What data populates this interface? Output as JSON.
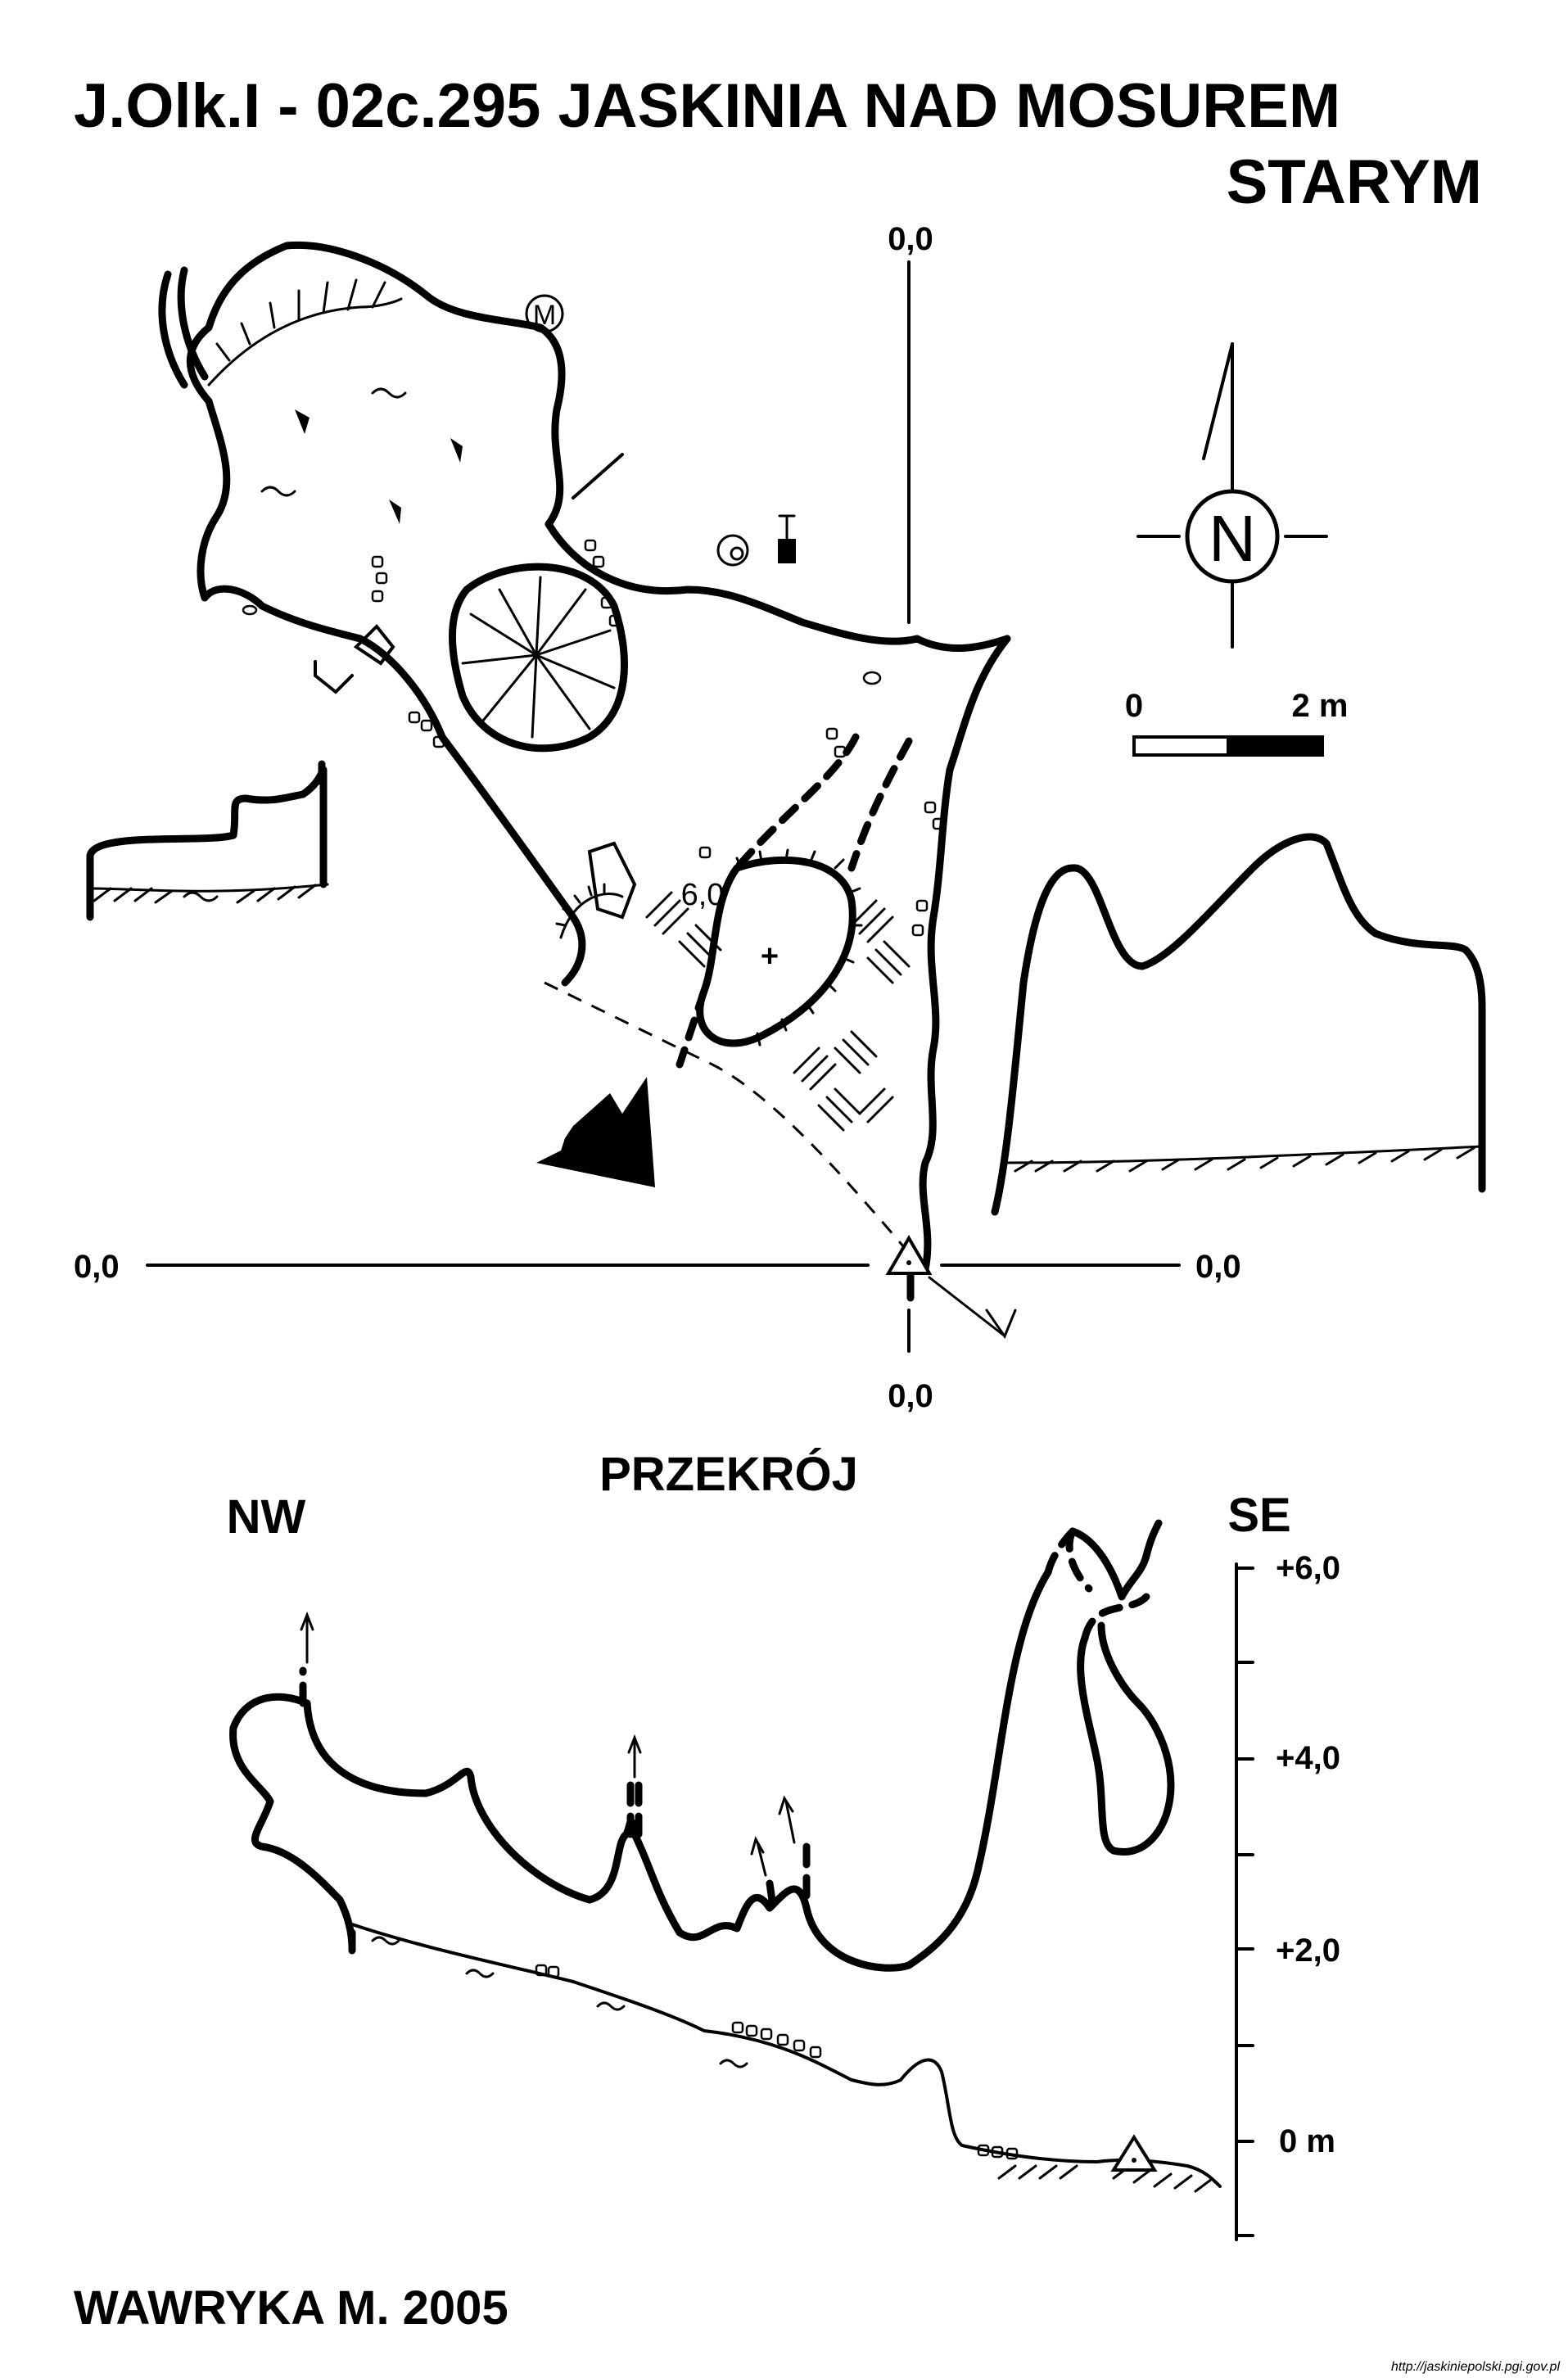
{
  "title": {
    "line1": "J.Olk.I - 02c.295  JASKINIA NAD MOSUREM",
    "line2": "STARYM"
  },
  "plan": {
    "coord_top": "0,0",
    "coord_left": "0,0",
    "coord_right": "0,0",
    "coord_bottom": "0,0",
    "depth_label": "6,0",
    "symbols": [
      "monument-symbol",
      "snail-symbol",
      "survey-point-symbol",
      "entrance-arrow-symbol",
      "plus-mark"
    ]
  },
  "legend": {
    "north": "N",
    "scale_start": "0",
    "scale_end": "2 m"
  },
  "section": {
    "title": "PRZEKRÓJ",
    "left_dir": "NW",
    "right_dir": "SE",
    "ticks": [
      "+6,0",
      "+4,0",
      "+2,0",
      "0 m"
    ]
  },
  "author": "WAWRYKA M. 2005",
  "source": "http://jaskiniepolski.pgi.gov.pl"
}
